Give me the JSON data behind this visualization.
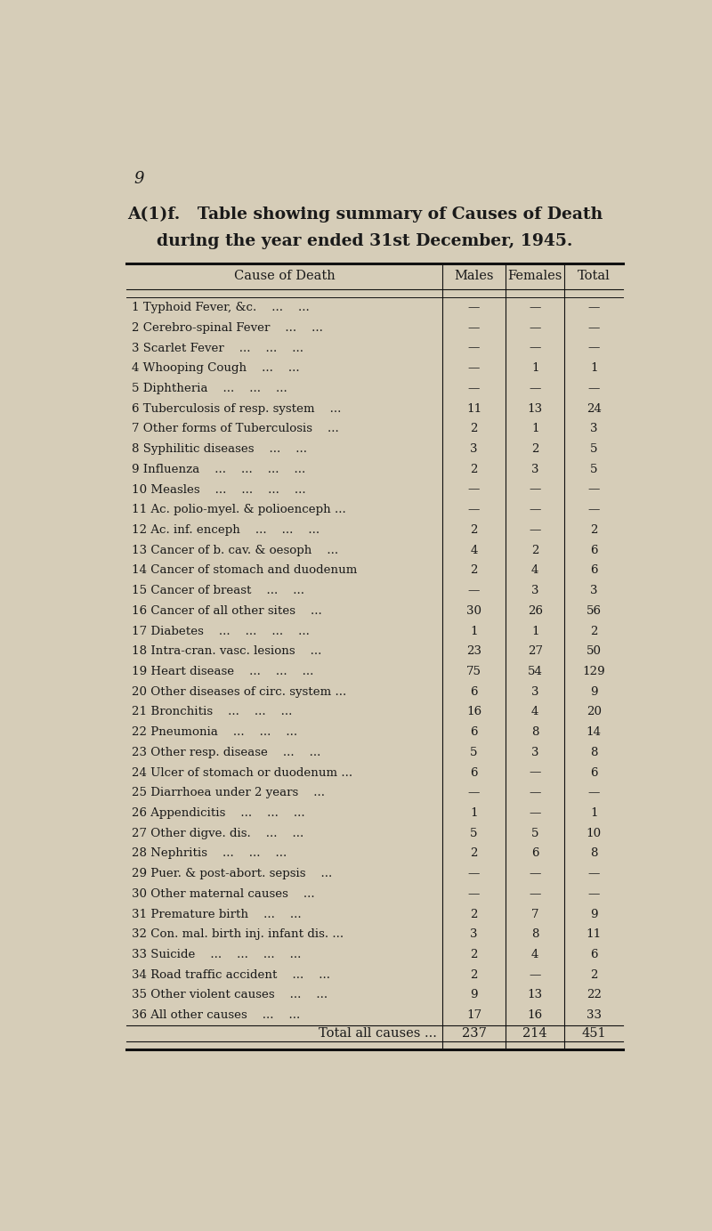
{
  "page_number": "9",
  "title_line1": "A(1)f.   Table showing summary of Causes of Death",
  "title_line2": "during the year ended 31st December, 1945.",
  "col_headers": [
    "Cause of Death",
    "Males",
    "Females",
    "Total"
  ],
  "rows": [
    [
      "1 Typhoid Fever, &c.    ...    ...",
      "—",
      "—",
      "—"
    ],
    [
      "2 Cerebro-spinal Fever    ...    ...",
      "—",
      "—",
      "—"
    ],
    [
      "3 Scarlet Fever    ...    ...    ...",
      "—",
      "—",
      "—"
    ],
    [
      "4 Whooping Cough    ...    ...",
      "—",
      "1",
      "1"
    ],
    [
      "5 Diphtheria    ...    ...    ...",
      "—",
      "—",
      "—"
    ],
    [
      "6 Tuberculosis of resp. system    ...",
      "11",
      "13",
      "24"
    ],
    [
      "7 Other forms of Tuberculosis    ...",
      "2",
      "1",
      "3"
    ],
    [
      "8 Syphilitic diseases    ...    ...",
      "3",
      "2",
      "5"
    ],
    [
      "9 Influenza    ...    ...    ...    ...",
      "2",
      "3",
      "5"
    ],
    [
      "10 Measles    ...    ...    ...    ...",
      "—",
      "—",
      "—"
    ],
    [
      "11 Ac. polio-myel. & polioenceph ...",
      "—",
      "—",
      "—"
    ],
    [
      "12 Ac. inf. enceph    ...    ...    ...",
      "2",
      "—",
      "2"
    ],
    [
      "13 Cancer of b. cav. & oesoph    ...",
      "4",
      "2",
      "6"
    ],
    [
      "14 Cancer of stomach and duodenum",
      "2",
      "4",
      "6"
    ],
    [
      "15 Cancer of breast    ...    ...",
      "—",
      "3",
      "3"
    ],
    [
      "16 Cancer of all other sites    ...",
      "30",
      "26",
      "56"
    ],
    [
      "17 Diabetes    ...    ...    ...    ...",
      "1",
      "1",
      "2"
    ],
    [
      "18 Intra-cran. vasc. lesions    ...",
      "23",
      "27",
      "50"
    ],
    [
      "19 Heart disease    ...    ...    ...",
      "75",
      "54",
      "129"
    ],
    [
      "20 Other diseases of circ. system ...",
      "6",
      "3",
      "9"
    ],
    [
      "21 Bronchitis    ...    ...    ...",
      "16",
      "4",
      "20"
    ],
    [
      "22 Pneumonia    ...    ...    ...",
      "6",
      "8",
      "14"
    ],
    [
      "23 Other resp. disease    ...    ...",
      "5",
      "3",
      "8"
    ],
    [
      "24 Ulcer of stomach or duodenum ...",
      "6",
      "—",
      "6"
    ],
    [
      "25 Diarrhoea under 2 years    ...",
      "—",
      "—",
      "—"
    ],
    [
      "26 Appendicitis    ...    ...    ...",
      "1",
      "—",
      "1"
    ],
    [
      "27 Other digve. dis.    ...    ...",
      "5",
      "5",
      "10"
    ],
    [
      "28 Nephritis    ...    ...    ...",
      "2",
      "6",
      "8"
    ],
    [
      "29 Puer. & post-abort. sepsis    ...",
      "—",
      "—",
      "—"
    ],
    [
      "30 Other maternal causes    ...",
      "—",
      "—",
      "—"
    ],
    [
      "31 Premature birth    ...    ...",
      "2",
      "7",
      "9"
    ],
    [
      "32 Con. mal. birth inj. infant dis. ...",
      "3",
      "8",
      "11"
    ],
    [
      "33 Suicide    ...    ...    ...    ...",
      "2",
      "4",
      "6"
    ],
    [
      "34 Road traffic accident    ...    ...",
      "2",
      "—",
      "2"
    ],
    [
      "35 Other violent causes    ...    ...",
      "9",
      "13",
      "22"
    ],
    [
      "36 All other causes    ...    ...",
      "17",
      "16",
      "33"
    ]
  ],
  "total_row": [
    "Total all causes ...",
    "237",
    "214",
    "451"
  ],
  "bg_color": "#d6cdb8",
  "text_color": "#1a1a1a",
  "title_color": "#1a1a1a",
  "line_color": "#111111"
}
